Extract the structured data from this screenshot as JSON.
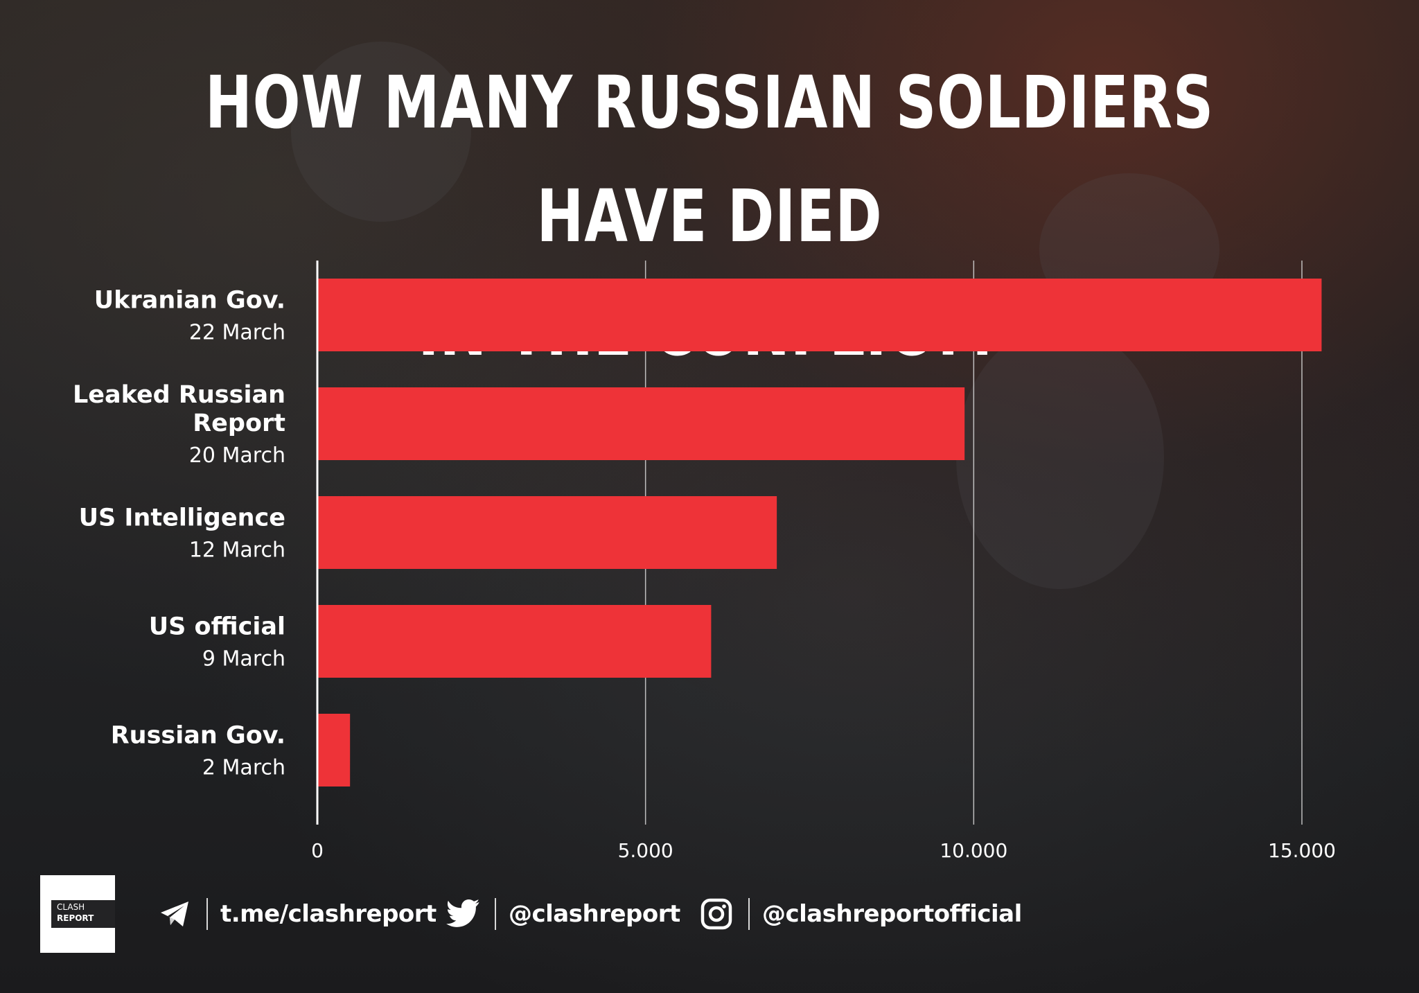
{
  "title_lines": [
    "HOW MANY RUSSIAN SOLDIERS HAVE DIED",
    "IN THE CONFLICT?"
  ],
  "colors": {
    "bar": "#EE3338",
    "text": "#FFFFFF",
    "gridline": "#D9D9D9"
  },
  "chart_data": {
    "type": "bar",
    "orientation": "horizontal",
    "title": "HOW MANY RUSSIAN SOLDIERS HAVE DIED IN THE CONFLICT?",
    "categories": [
      {
        "name": "Ukranian Gov.",
        "date": "22 March"
      },
      {
        "name": "Leaked Russian Report",
        "name_lines": [
          "Leaked Russian",
          "Report"
        ],
        "date": "20 March"
      },
      {
        "name": "US Intelligence",
        "date": "12 March"
      },
      {
        "name": "US official",
        "date": "9 March"
      },
      {
        "name": "Russian Gov.",
        "date": "2 March"
      }
    ],
    "values": [
      15300,
      9861,
      7000,
      6000,
      498
    ],
    "xlim": [
      0,
      15500
    ],
    "ticks": [
      0,
      5000,
      10000,
      15000
    ],
    "tick_labels": [
      "0",
      "5.000",
      "10.000",
      "15.000"
    ],
    "grid": true,
    "legend": "none"
  },
  "footer": {
    "logo_lines": [
      "CLASH",
      "REPORT"
    ],
    "telegram_icon": "telegram-icon",
    "telegram_text": "t.me/clashreport",
    "twitter_icon": "twitter-icon",
    "twitter_text": "@clashreport",
    "instagram_icon": "instagram-icon",
    "instagram_text": "@clashreportofficial"
  }
}
